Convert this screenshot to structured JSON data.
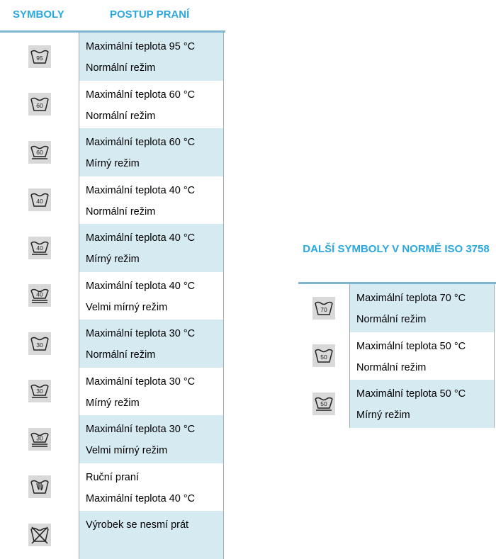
{
  "headers": {
    "symbols": "SYMBOLY",
    "procedure": "POSTUP PRANÍ"
  },
  "main_rows": [
    {
      "icon": "washtub-95-icon",
      "temp": "95",
      "bars": 0,
      "line1": "Maximální teplota 95 °C",
      "line2": "Normální režim"
    },
    {
      "icon": "washtub-60-icon",
      "temp": "60",
      "bars": 0,
      "line1": "Maximální teplota 60 °C",
      "line2": "Normální režim"
    },
    {
      "icon": "washtub-60-gentle-icon",
      "temp": "60",
      "bars": 1,
      "line1": "Maximální teplota 60 °C",
      "line2": "Mírný režim"
    },
    {
      "icon": "washtub-40-icon",
      "temp": "40",
      "bars": 0,
      "line1": "Maximální teplota 40 °C",
      "line2": "Normální režim"
    },
    {
      "icon": "washtub-40-gentle-icon",
      "temp": "40",
      "bars": 1,
      "line1": "Maximální teplota 40 °C",
      "line2": "Mírný režim"
    },
    {
      "icon": "washtub-40-very-gentle-icon",
      "temp": "40",
      "bars": 2,
      "line1": "Maximální teplota 40 °C",
      "line2": "Velmi mírný režim"
    },
    {
      "icon": "washtub-30-icon",
      "temp": "30",
      "bars": 0,
      "line1": "Maximální teplota 30 °C",
      "line2": "Normální režim"
    },
    {
      "icon": "washtub-30-gentle-icon",
      "temp": "30",
      "bars": 1,
      "line1": "Maximální teplota 30 °C",
      "line2": "Mírný režim"
    },
    {
      "icon": "washtub-30-very-gentle-icon",
      "temp": "30",
      "bars": 2,
      "line1": "Maximální teplota 30 °C",
      "line2": "Velmi mírný režim"
    },
    {
      "icon": "hand-wash-icon",
      "temp": "",
      "bars": 0,
      "line1": "Ruční praní",
      "line2": "Maximální teplota 40 °C"
    },
    {
      "icon": "do-not-wash-icon",
      "temp": "",
      "bars": 0,
      "line1": "Výrobek se nesmí prát",
      "line2": ""
    }
  ],
  "right_title": "DALŠÍ SYMBOLY V NORMĚ ISO 3758",
  "right_rows": [
    {
      "icon": "washtub-70-icon",
      "temp": "70",
      "bars": 0,
      "line1": "Maximální teplota 70 °C",
      "line2": "Normální režim"
    },
    {
      "icon": "washtub-50-icon",
      "temp": "50",
      "bars": 0,
      "line1": "Maximální teplota 50 °C",
      "line2": "Normální režim"
    },
    {
      "icon": "washtub-50-gentle-icon",
      "temp": "50",
      "bars": 1,
      "line1": "Maximální teplota 50 °C",
      "line2": "Mírný režim"
    }
  ]
}
